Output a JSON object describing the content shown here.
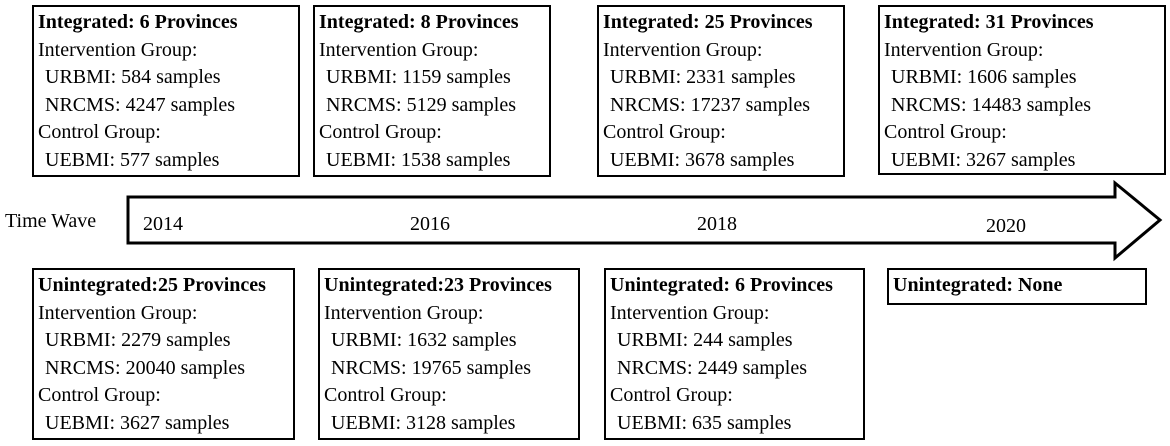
{
  "time_axis": {
    "label": "Time Wave",
    "years": [
      "2014",
      "2016",
      "2018",
      "2020"
    ]
  },
  "integrated": [
    {
      "title": "Integrated: 6 Provinces",
      "lines": [
        "Intervention Group:",
        "URBMI: 584 samples",
        "NRCMS: 4247 samples",
        "Control Group:",
        "UEBMI: 577 samples"
      ]
    },
    {
      "title": "Integrated: 8 Provinces",
      "lines": [
        "Intervention Group:",
        "URBMI: 1159 samples",
        "NRCMS: 5129 samples",
        "Control Group:",
        "UEBMI: 1538 samples"
      ]
    },
    {
      "title": "Integrated: 25 Provinces",
      "lines": [
        "Intervention Group:",
        "URBMI: 2331 samples",
        "NRCMS: 17237 samples",
        "Control Group:",
        "UEBMI: 3678 samples"
      ]
    },
    {
      "title": "Integrated: 31 Provinces",
      "lines": [
        "Intervention Group:",
        "URBMI: 1606 samples",
        "NRCMS: 14483 samples",
        "Control Group:",
        "UEBMI: 3267 samples"
      ]
    }
  ],
  "unintegrated": [
    {
      "title": "Unintegrated:25 Provinces",
      "lines": [
        "Intervention Group:",
        "URBMI: 2279 samples",
        "NRCMS: 20040 samples",
        "Control Group:",
        "UEBMI: 3627 samples"
      ]
    },
    {
      "title": "Unintegrated:23 Provinces",
      "lines": [
        "Intervention Group:",
        "URBMI: 1632 samples",
        "NRCMS: 19765 samples",
        "Control Group:",
        "UEBMI: 3128 samples"
      ]
    },
    {
      "title": "Unintegrated: 6 Provinces",
      "lines": [
        "Intervention Group:",
        "URBMI: 244 samples",
        "NRCMS: 2449 samples",
        "Control Group:",
        "UEBMI: 635 samples"
      ]
    },
    {
      "title": "Unintegrated: None",
      "lines": []
    }
  ]
}
